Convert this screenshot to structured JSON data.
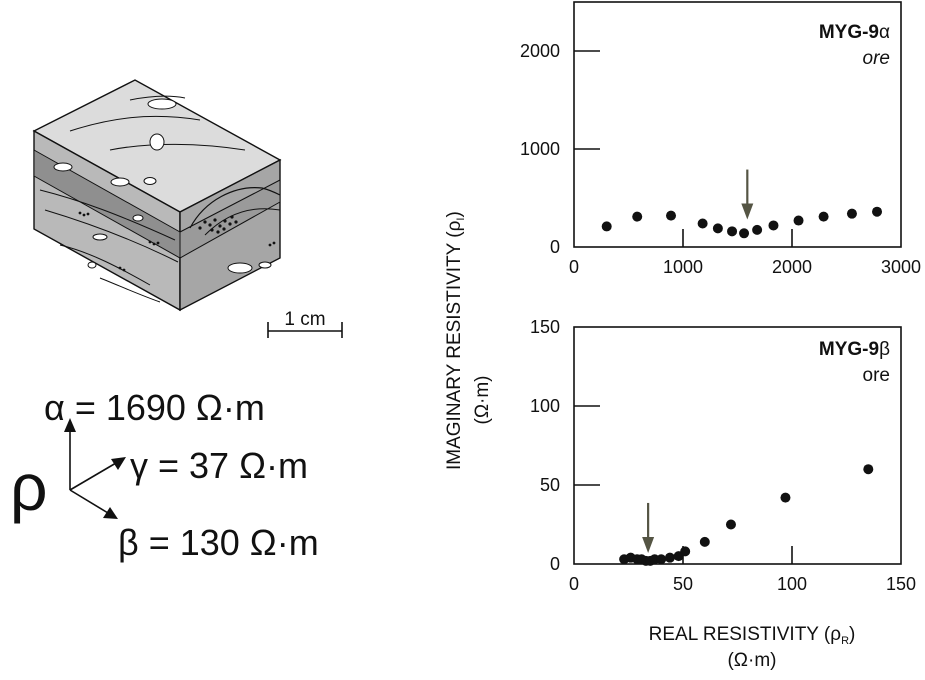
{
  "sample_block": {
    "scale_bar_label": "1 cm"
  },
  "resistivity_labels": {
    "rho_symbol": "ρ",
    "alpha": "α = 1690 Ω·m",
    "gamma": "γ = 37 Ω·m",
    "beta": "β = 130 Ω·m"
  },
  "shared_axes": {
    "ylabel": "IMAGINARY RESISTIVITY (ρ",
    "ylabel_sub": "I",
    "ylabel_close": ")",
    "ylabel_units": "(Ω·m)",
    "xlabel": "REAL RESISTIVITY (ρ",
    "xlabel_sub": "R",
    "xlabel_close": ")",
    "xlabel_units": "(Ω·m)"
  },
  "colors": {
    "arrow": "#555544",
    "ink": "#111111"
  },
  "chart_data": [
    {
      "type": "scatter",
      "sample_name": "MYG-9",
      "sample_suffix": "α",
      "sample_type": "ore",
      "xlim": [
        0,
        3000
      ],
      "ylim": [
        0,
        2500
      ],
      "xticks": [
        0,
        1000,
        2000,
        3000
      ],
      "yticks": [
        0,
        1000,
        2000
      ],
      "x": [
        300,
        580,
        890,
        1180,
        1320,
        1450,
        1560,
        1680,
        1830,
        2060,
        2290,
        2550,
        2780
      ],
      "y": [
        210,
        310,
        320,
        240,
        190,
        160,
        140,
        175,
        220,
        270,
        310,
        340,
        360
      ],
      "arrow_at": [
        1590,
        280
      ]
    },
    {
      "type": "scatter",
      "sample_name": "MYG-9",
      "sample_suffix": "β",
      "sample_type": "ore",
      "xlim": [
        0,
        150
      ],
      "ylim": [
        0,
        150
      ],
      "xticks": [
        0,
        50,
        100,
        150
      ],
      "yticks": [
        0,
        50,
        100,
        150
      ],
      "x": [
        23,
        26,
        29,
        31,
        33,
        35,
        37,
        40,
        44,
        48,
        51,
        60,
        72,
        97,
        135
      ],
      "y": [
        3,
        4,
        3,
        3,
        2,
        2,
        3,
        3,
        4,
        5,
        8,
        14,
        25,
        42,
        60
      ],
      "arrow_at": [
        34,
        7
      ]
    }
  ]
}
